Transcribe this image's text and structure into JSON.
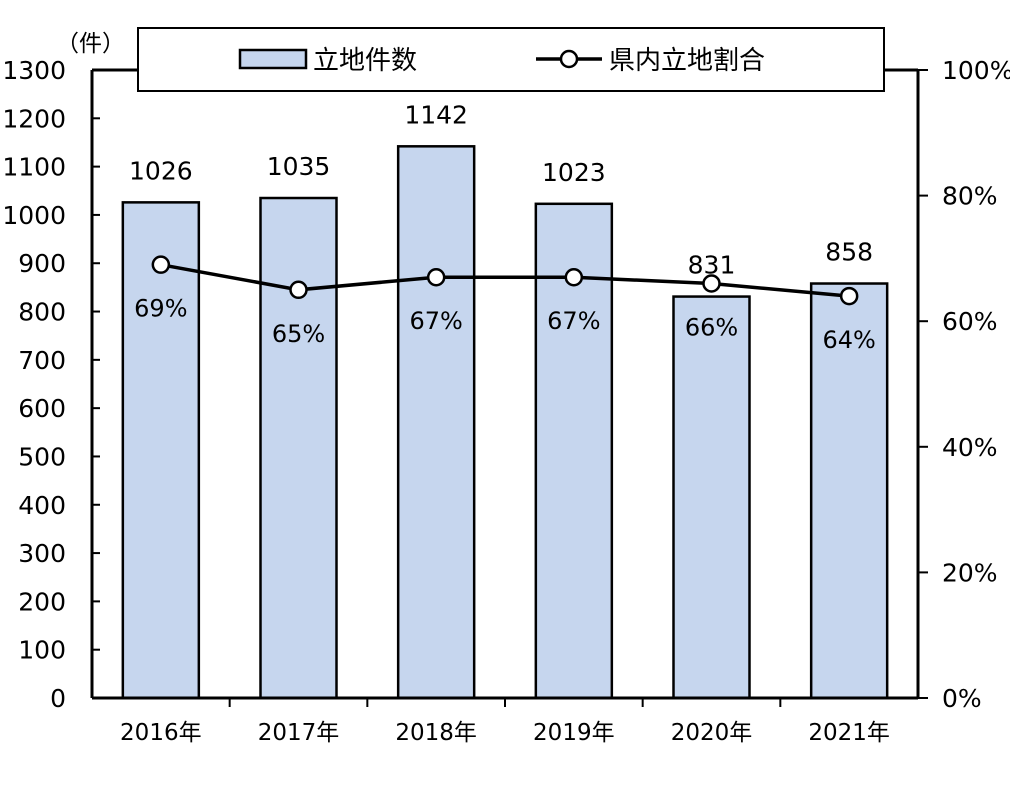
{
  "chart_data": {
    "type": "bar",
    "unit_label": "（件）",
    "categories": [
      "2016年",
      "2017年",
      "2018年",
      "2019年",
      "2020年",
      "2021年"
    ],
    "series": [
      {
        "name": "立地件数",
        "kind": "bar",
        "axis": "left",
        "values": [
          1026,
          1035,
          1142,
          1023,
          831,
          858
        ],
        "labels": [
          "1026",
          "1035",
          "1142",
          "1023",
          "831",
          "858"
        ],
        "color": "#c6d6ee"
      },
      {
        "name": "県内立地割合",
        "kind": "line",
        "axis": "right",
        "values": [
          69,
          65,
          67,
          67,
          66,
          64
        ],
        "labels": [
          "69%",
          "65%",
          "67%",
          "67%",
          "66%",
          "64%"
        ],
        "color": "#000000"
      }
    ],
    "y_left": {
      "min": 0,
      "max": 1300,
      "ticks": [
        "0",
        "100",
        "200",
        "300",
        "400",
        "500",
        "600",
        "700",
        "800",
        "900",
        "1000",
        "1100",
        "1200",
        "1300"
      ]
    },
    "y_right": {
      "min": 0,
      "max": 100,
      "ticks": [
        "0%",
        "20%",
        "40%",
        "60%",
        "80%",
        "100%"
      ]
    },
    "grid": false,
    "legend_position": "top"
  }
}
